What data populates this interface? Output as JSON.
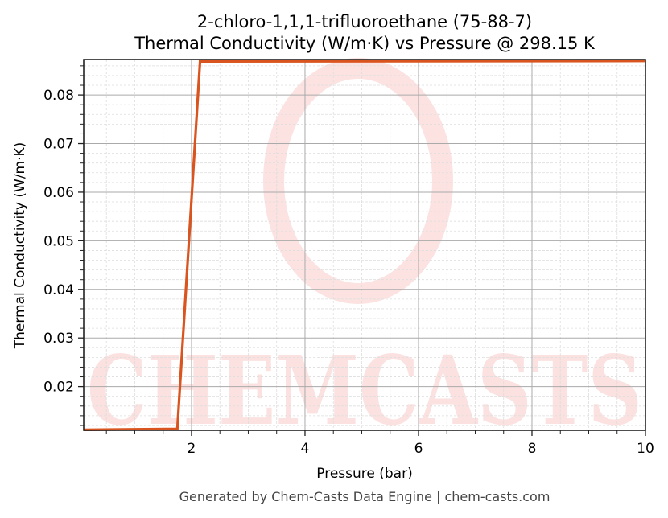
{
  "chart_data": {
    "type": "line",
    "title": "2-chloro-1,1,1-trifluoroethane (75-88-7)",
    "subtitle": "Thermal Conductivity (W/m·K) vs Pressure @ 298.15 K",
    "xlabel": "Pressure (bar)",
    "ylabel": "Thermal Conductivity (W/m·K)",
    "xlim": [
      0.1,
      10
    ],
    "ylim": [
      0.011,
      0.0873
    ],
    "xticks": [
      2,
      4,
      6,
      8,
      10
    ],
    "xtick_labels": [
      "2",
      "4",
      "6",
      "8",
      "10"
    ],
    "yticks": [
      0.02,
      0.03,
      0.04,
      0.05,
      0.06,
      0.07,
      0.08
    ],
    "ytick_labels": [
      "0.02",
      "0.03",
      "0.04",
      "0.05",
      "0.06",
      "0.07",
      "0.08"
    ],
    "grid": true,
    "series": [
      {
        "color": "#d9541e",
        "x": [
          0.1,
          1.75,
          2.15,
          10
        ],
        "y": [
          0.0111,
          0.0113,
          0.0869,
          0.087
        ]
      }
    ],
    "watermark": "CHEMCASTS"
  },
  "footer": "Generated by Chem-Casts Data Engine | chem-casts.com"
}
